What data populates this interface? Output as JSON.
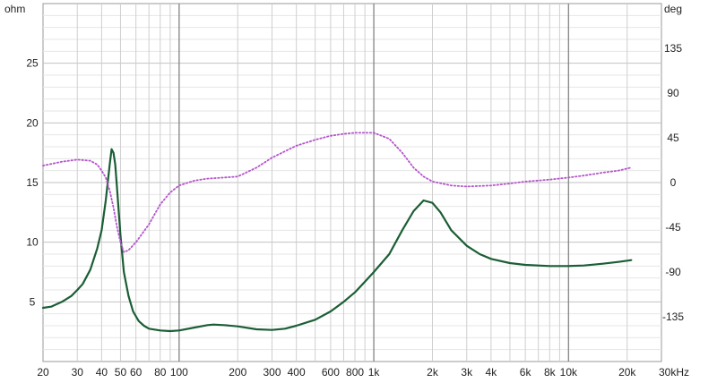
{
  "chart_data": {
    "type": "line",
    "title": "",
    "x_scale": "log",
    "xlim": [
      20,
      30000
    ],
    "ylim_left": [
      0,
      30
    ],
    "ylim_right": [
      -180,
      180
    ],
    "x_unit_label": "30kHz",
    "left_unit_label": "ohm",
    "right_unit_label": "deg",
    "grid": true,
    "x_ticks": [
      {
        "value": 20,
        "label": "20"
      },
      {
        "value": 30,
        "label": "30"
      },
      {
        "value": 40,
        "label": "40"
      },
      {
        "value": 50,
        "label": "50"
      },
      {
        "value": 60,
        "label": "60"
      },
      {
        "value": 80,
        "label": "80"
      },
      {
        "value": 100,
        "label": "100"
      },
      {
        "value": 200,
        "label": "200"
      },
      {
        "value": 300,
        "label": "300"
      },
      {
        "value": 400,
        "label": "400"
      },
      {
        "value": 600,
        "label": "600"
      },
      {
        "value": 800,
        "label": "800"
      },
      {
        "value": 1000,
        "label": "1k"
      },
      {
        "value": 2000,
        "label": "2k"
      },
      {
        "value": 3000,
        "label": "3k"
      },
      {
        "value": 4000,
        "label": "4k"
      },
      {
        "value": 6000,
        "label": "6k"
      },
      {
        "value": 8000,
        "label": "8k"
      },
      {
        "value": 10000,
        "label": "10k"
      },
      {
        "value": 20000,
        "label": "20k"
      }
    ],
    "y_ticks_left": [
      {
        "value": 5,
        "label": "5"
      },
      {
        "value": 10,
        "label": "10"
      },
      {
        "value": 15,
        "label": "15"
      },
      {
        "value": 20,
        "label": "20"
      },
      {
        "value": 25,
        "label": "25"
      }
    ],
    "y_ticks_right": [
      {
        "value": 135,
        "label": "135"
      },
      {
        "value": 90,
        "label": "90"
      },
      {
        "value": 45,
        "label": "45"
      },
      {
        "value": 0,
        "label": "0"
      },
      {
        "value": -45,
        "label": "-45"
      },
      {
        "value": -90,
        "label": "-90"
      },
      {
        "value": -135,
        "label": "-135"
      }
    ],
    "series": [
      {
        "axis": "left",
        "style": "solid",
        "color": "#1a5e34",
        "points": [
          [
            20,
            4.5
          ],
          [
            22,
            4.6
          ],
          [
            25,
            5.0
          ],
          [
            28,
            5.5
          ],
          [
            30,
            6.0
          ],
          [
            32,
            6.5
          ],
          [
            35,
            7.7
          ],
          [
            38,
            9.5
          ],
          [
            40,
            11.0
          ],
          [
            42,
            13.5
          ],
          [
            44,
            16.5
          ],
          [
            45,
            17.8
          ],
          [
            46,
            17.5
          ],
          [
            47,
            16.5
          ],
          [
            48,
            14.5
          ],
          [
            50,
            10.5
          ],
          [
            52,
            7.5
          ],
          [
            55,
            5.5
          ],
          [
            58,
            4.2
          ],
          [
            62,
            3.4
          ],
          [
            66,
            3.0
          ],
          [
            70,
            2.75
          ],
          [
            80,
            2.6
          ],
          [
            90,
            2.55
          ],
          [
            100,
            2.6
          ],
          [
            120,
            2.85
          ],
          [
            140,
            3.05
          ],
          [
            150,
            3.1
          ],
          [
            170,
            3.05
          ],
          [
            200,
            2.95
          ],
          [
            250,
            2.7
          ],
          [
            300,
            2.65
          ],
          [
            350,
            2.75
          ],
          [
            400,
            3.0
          ],
          [
            500,
            3.5
          ],
          [
            600,
            4.2
          ],
          [
            700,
            5.0
          ],
          [
            800,
            5.8
          ],
          [
            900,
            6.7
          ],
          [
            1000,
            7.5
          ],
          [
            1200,
            9.0
          ],
          [
            1400,
            11.0
          ],
          [
            1600,
            12.6
          ],
          [
            1800,
            13.5
          ],
          [
            2000,
            13.3
          ],
          [
            2200,
            12.5
          ],
          [
            2500,
            11.0
          ],
          [
            3000,
            9.7
          ],
          [
            3500,
            9.0
          ],
          [
            4000,
            8.6
          ],
          [
            5000,
            8.25
          ],
          [
            6000,
            8.1
          ],
          [
            8000,
            8.0
          ],
          [
            10000,
            8.0
          ],
          [
            12000,
            8.05
          ],
          [
            15000,
            8.2
          ],
          [
            18000,
            8.35
          ],
          [
            21000,
            8.5
          ]
        ]
      },
      {
        "axis": "right",
        "style": "dotted",
        "color": "#b455cc",
        "points": [
          [
            20,
            17
          ],
          [
            25,
            21
          ],
          [
            30,
            23
          ],
          [
            35,
            22
          ],
          [
            38,
            18
          ],
          [
            40,
            12
          ],
          [
            42,
            5
          ],
          [
            44,
            -8
          ],
          [
            46,
            -25
          ],
          [
            48,
            -45
          ],
          [
            50,
            -60
          ],
          [
            52,
            -70
          ],
          [
            55,
            -68
          ],
          [
            60,
            -60
          ],
          [
            70,
            -42
          ],
          [
            80,
            -22
          ],
          [
            90,
            -10
          ],
          [
            100,
            -3
          ],
          [
            120,
            2
          ],
          [
            140,
            4
          ],
          [
            170,
            5
          ],
          [
            200,
            6
          ],
          [
            250,
            15
          ],
          [
            300,
            25
          ],
          [
            400,
            37
          ],
          [
            500,
            43
          ],
          [
            600,
            47
          ],
          [
            700,
            49
          ],
          [
            800,
            50
          ],
          [
            1000,
            50
          ],
          [
            1200,
            44
          ],
          [
            1400,
            30
          ],
          [
            1600,
            15
          ],
          [
            1800,
            6
          ],
          [
            2000,
            1
          ],
          [
            2500,
            -3
          ],
          [
            3000,
            -4
          ],
          [
            4000,
            -3
          ],
          [
            5000,
            -1
          ],
          [
            6000,
            1
          ],
          [
            8000,
            3
          ],
          [
            10000,
            5
          ],
          [
            12000,
            7
          ],
          [
            15000,
            10
          ],
          [
            18000,
            12
          ],
          [
            21000,
            15
          ]
        ]
      }
    ]
  }
}
